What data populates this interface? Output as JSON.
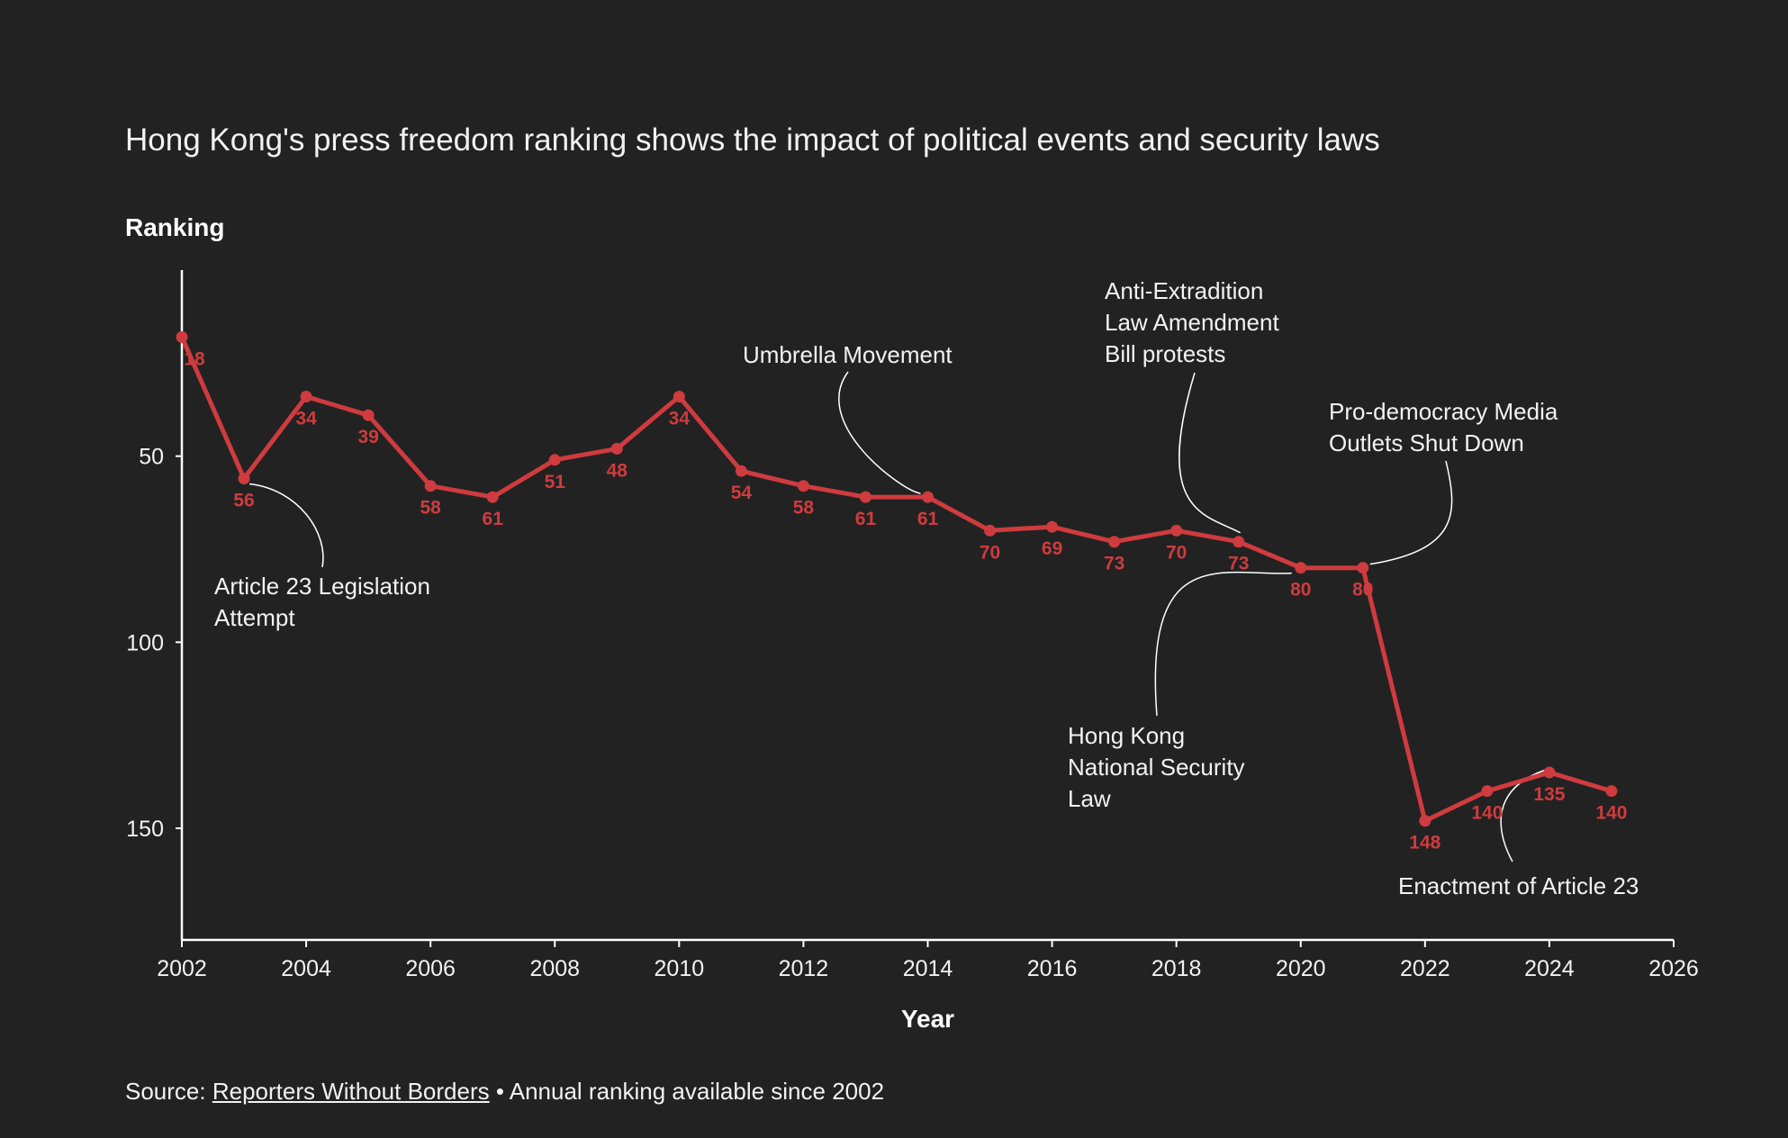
{
  "title": "Hong Kong's press freedom ranking shows the impact of political events and security laws",
  "source": {
    "prefix": "Source: ",
    "link_text": "Reporters Without Borders",
    "suffix": " • Annual ranking available since 2002"
  },
  "colors": {
    "background": "#222222",
    "line": "#cf3b3e",
    "text": "#f2f2f2"
  },
  "chart_data": {
    "type": "line",
    "title": "Hong Kong's press freedom ranking shows the impact of political events and security laws",
    "xlabel": "Year",
    "ylabel": "Ranking",
    "xlim": [
      2002,
      2026
    ],
    "ylim": [
      0,
      180
    ],
    "y_inverted": true,
    "x_ticks": [
      2002,
      2004,
      2006,
      2008,
      2010,
      2012,
      2014,
      2016,
      2018,
      2020,
      2022,
      2024,
      2026
    ],
    "y_ticks": [
      50,
      100,
      150
    ],
    "grid": false,
    "series": [
      {
        "x": [
          2002,
          2003,
          2004,
          2005,
          2006,
          2007,
          2008,
          2009,
          2010,
          2011,
          2012,
          2013,
          2014,
          2015,
          2016,
          2017,
          2018,
          2019,
          2020,
          2021,
          2022,
          2023,
          2024,
          2025
        ],
        "values": [
          18,
          56,
          34,
          39,
          58,
          61,
          51,
          48,
          34,
          54,
          58,
          61,
          61,
          70,
          69,
          73,
          70,
          73,
          80,
          80,
          148,
          140,
          135,
          140
        ],
        "color": "#cf3b3e"
      }
    ],
    "annotations": [
      {
        "lines": [
          "Article 23 Legislation",
          "Attempt"
        ],
        "x": 2003,
        "y": 56
      },
      {
        "lines": [
          "Umbrella Movement"
        ],
        "x": 2014,
        "y": 61
      },
      {
        "lines": [
          "Anti-Extradition",
          "Law Amendment",
          "Bill protests"
        ],
        "x": 2019,
        "y": 73
      },
      {
        "lines": [
          "Pro-democracy Media",
          "Outlets Shut Down"
        ],
        "x": 2021,
        "y": 80
      },
      {
        "lines": [
          "Hong Kong",
          "National Security",
          "Law"
        ],
        "x": 2020,
        "y": 80
      },
      {
        "lines": [
          "Enactment of Article 23"
        ],
        "x": 2024,
        "y": 135
      }
    ]
  }
}
